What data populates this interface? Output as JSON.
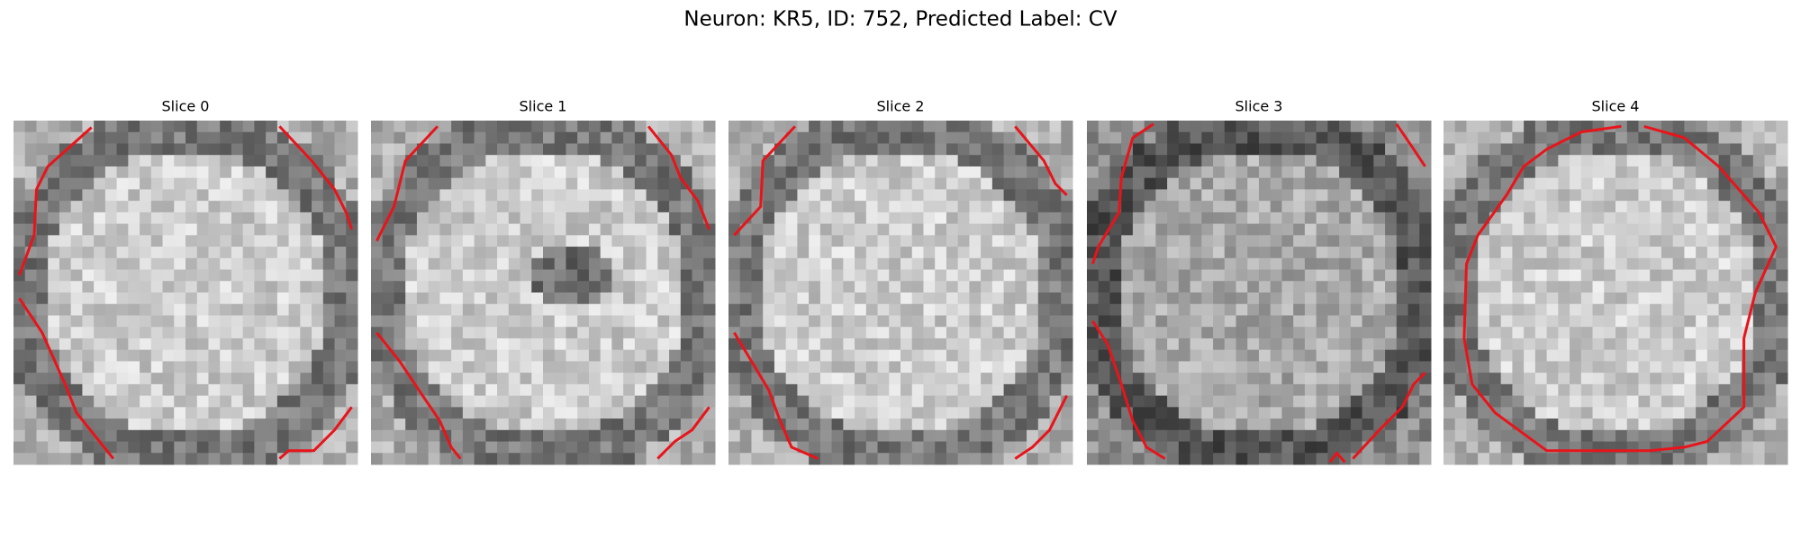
{
  "title": "Neuron: KR5, ID: 752, Predicted Label: CV",
  "panels": [
    {
      "title": "Slice 0"
    },
    {
      "title": "Slice 1"
    },
    {
      "title": "Slice 2"
    },
    {
      "title": "Slice 3"
    },
    {
      "title": "Slice 4"
    }
  ]
}
